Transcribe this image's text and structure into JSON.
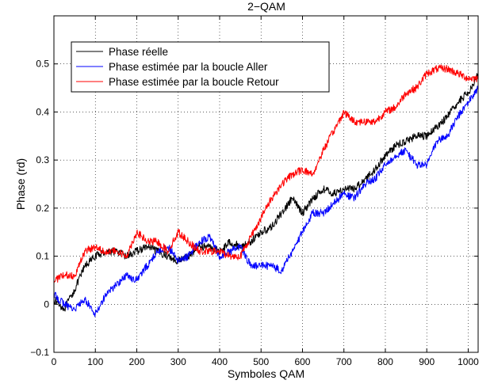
{
  "chart_data": {
    "type": "line",
    "title": "2−QAM",
    "xlabel": "Symboles QAM",
    "ylabel": "Phase (rd)",
    "xlim": [
      0,
      1024
    ],
    "ylim": [
      -0.1,
      0.6
    ],
    "xticks": [
      0,
      100,
      200,
      300,
      400,
      500,
      600,
      700,
      800,
      900,
      1000
    ],
    "yticks": [
      -0.1,
      0,
      0.1,
      0.2,
      0.3,
      0.4,
      0.5
    ],
    "ytick_labels": [
      "−0.1",
      "0",
      "0.1",
      "0.2",
      "0.3",
      "0.4",
      "0.5"
    ],
    "grid": true,
    "legend_position": "top-left",
    "x": [
      0,
      25,
      50,
      75,
      100,
      125,
      150,
      175,
      200,
      225,
      250,
      275,
      300,
      325,
      350,
      375,
      400,
      425,
      450,
      475,
      500,
      525,
      550,
      575,
      600,
      625,
      650,
      675,
      700,
      725,
      750,
      775,
      800,
      825,
      850,
      875,
      900,
      925,
      950,
      975,
      1000,
      1024
    ],
    "series": [
      {
        "name": "Phase réelle",
        "color": "#000000",
        "values": [
          0.01,
          -0.01,
          0.03,
          0.08,
          0.1,
          0.11,
          0.11,
          0.1,
          0.11,
          0.12,
          0.11,
          0.1,
          0.09,
          0.1,
          0.12,
          0.12,
          0.11,
          0.13,
          0.12,
          0.13,
          0.15,
          0.16,
          0.19,
          0.22,
          0.19,
          0.22,
          0.24,
          0.23,
          0.24,
          0.24,
          0.26,
          0.28,
          0.31,
          0.33,
          0.34,
          0.35,
          0.35,
          0.37,
          0.39,
          0.42,
          0.44,
          0.48
        ]
      },
      {
        "name": "Phase estimée par la boucle Aller",
        "color": "#0000ff",
        "values": [
          0.02,
          0.0,
          -0.01,
          0.01,
          -0.02,
          0.02,
          0.04,
          0.06,
          0.05,
          0.08,
          0.11,
          0.12,
          0.09,
          0.1,
          0.13,
          0.14,
          0.1,
          0.11,
          0.12,
          0.08,
          0.08,
          0.08,
          0.07,
          0.11,
          0.15,
          0.19,
          0.19,
          0.21,
          0.23,
          0.22,
          0.25,
          0.26,
          0.29,
          0.31,
          0.32,
          0.29,
          0.29,
          0.34,
          0.35,
          0.39,
          0.42,
          0.45
        ]
      },
      {
        "name": "Phase estimée par la boucle Retour",
        "color": "#ff0000",
        "values": [
          0.05,
          0.06,
          0.06,
          0.11,
          0.12,
          0.11,
          0.11,
          0.1,
          0.15,
          0.13,
          0.13,
          0.11,
          0.15,
          0.13,
          0.11,
          0.11,
          0.11,
          0.1,
          0.1,
          0.14,
          0.18,
          0.22,
          0.25,
          0.27,
          0.28,
          0.27,
          0.32,
          0.36,
          0.4,
          0.38,
          0.38,
          0.38,
          0.4,
          0.41,
          0.44,
          0.45,
          0.48,
          0.49,
          0.49,
          0.48,
          0.47,
          0.47
        ]
      }
    ]
  }
}
